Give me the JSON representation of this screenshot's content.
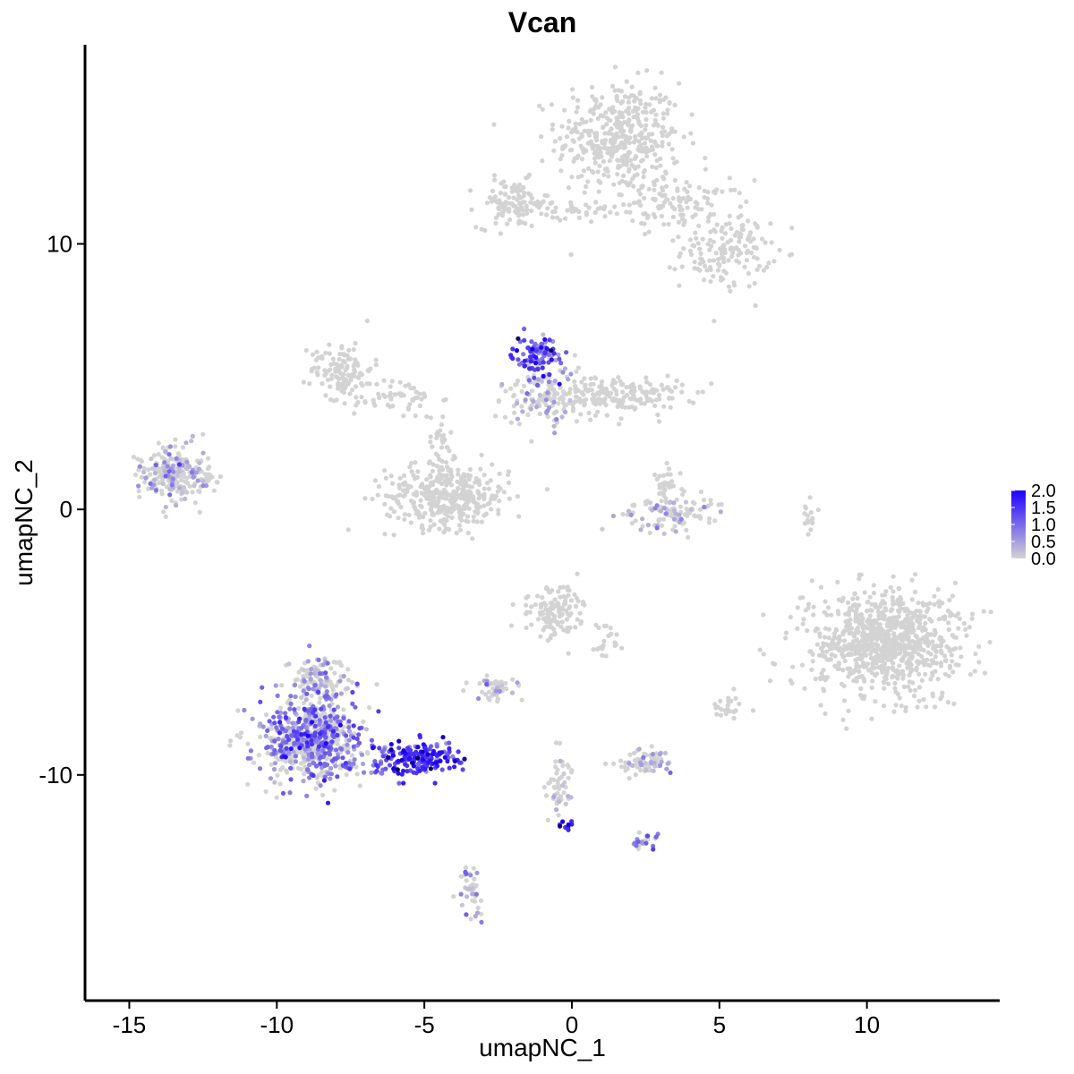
{
  "chart_data": {
    "type": "scatter",
    "title": "Vcan",
    "xlabel": "umapNC_1",
    "ylabel": "umapNC_2",
    "xlim": [
      -16.5,
      14.5
    ],
    "ylim": [
      -18.5,
      17.5
    ],
    "x_ticks": [
      -15,
      -10,
      -5,
      0,
      5,
      10
    ],
    "x_tick_labels": [
      "-15",
      "-10",
      "-5",
      "0",
      "5",
      "10"
    ],
    "y_ticks": [
      -10,
      0,
      10
    ],
    "y_tick_labels": [
      "-10",
      "0",
      "10"
    ],
    "grid": false,
    "legend_position": "right",
    "color_scale": {
      "low_color": "#d3d3d3",
      "high_color": "#1e00ff",
      "max_color": "#0a0060",
      "min": 0.0,
      "max": 2.0,
      "ticks": [
        2.0,
        1.5,
        1.0,
        0.5,
        0.0
      ],
      "tick_labels": [
        "2.0",
        "1.5",
        "1.0",
        "0.5",
        "0.0"
      ]
    },
    "clusters": [
      {
        "cx": 1.6,
        "cy": 14.0,
        "sx": 1.4,
        "sy": 1.4,
        "n": 420,
        "expr": 0.0
      },
      {
        "cx": 3.6,
        "cy": 11.5,
        "sx": 1.6,
        "sy": 0.6,
        "n": 120,
        "expr": 0.0
      },
      {
        "cx": 5.2,
        "cy": 9.7,
        "sx": 1.0,
        "sy": 0.9,
        "n": 150,
        "expr": 0.0
      },
      {
        "cx": -2.0,
        "cy": 11.5,
        "sx": 0.8,
        "sy": 0.6,
        "n": 110,
        "expr": 0.0
      },
      {
        "cx": -0.2,
        "cy": 11.2,
        "sx": 0.9,
        "sy": 0.3,
        "n": 30,
        "expr": 0.0
      },
      {
        "cx": -7.8,
        "cy": 5.3,
        "sx": 0.7,
        "sy": 0.7,
        "n": 120,
        "expr": 0.0
      },
      {
        "cx": -6.0,
        "cy": 4.2,
        "sx": 1.0,
        "sy": 0.5,
        "n": 60,
        "expr": 0.0
      },
      {
        "cx": -4.2,
        "cy": 0.5,
        "sx": 1.4,
        "sy": 0.8,
        "n": 380,
        "expr": 0.0
      },
      {
        "cx": -4.5,
        "cy": 2.5,
        "sx": 0.3,
        "sy": 0.8,
        "n": 30,
        "expr": 0.0
      },
      {
        "cx": -1.2,
        "cy": 5.8,
        "sx": 0.5,
        "sy": 0.5,
        "n": 90,
        "expr": 1.3
      },
      {
        "cx": -1.0,
        "cy": 4.3,
        "sx": 0.8,
        "sy": 0.8,
        "n": 130,
        "expr": 0.05
      },
      {
        "cx": 1.5,
        "cy": 4.3,
        "sx": 1.5,
        "sy": 0.5,
        "n": 200,
        "expr": 0.0
      },
      {
        "cx": -13.4,
        "cy": 1.3,
        "sx": 0.9,
        "sy": 0.7,
        "n": 250,
        "expr": 0.03
      },
      {
        "cx": 3.3,
        "cy": -0.1,
        "sx": 1.0,
        "sy": 0.5,
        "n": 120,
        "expr": 0.02
      },
      {
        "cx": 3.1,
        "cy": 0.9,
        "sx": 0.3,
        "sy": 0.5,
        "n": 30,
        "expr": 0.0
      },
      {
        "cx": 10.6,
        "cy": -5.0,
        "sx": 1.6,
        "sy": 1.3,
        "n": 900,
        "expr": 0.0
      },
      {
        "cx": -0.6,
        "cy": -3.8,
        "sx": 0.7,
        "sy": 0.6,
        "n": 130,
        "expr": 0.0
      },
      {
        "cx": 1.2,
        "cy": -5.0,
        "sx": 0.4,
        "sy": 0.4,
        "n": 20,
        "expr": 0.0
      },
      {
        "cx": -8.8,
        "cy": -8.7,
        "sx": 1.2,
        "sy": 1.1,
        "n": 650,
        "expr": 0.85
      },
      {
        "cx": -8.6,
        "cy": -6.4,
        "sx": 0.7,
        "sy": 0.6,
        "n": 110,
        "expr": 0.3
      },
      {
        "cx": -5.3,
        "cy": -9.4,
        "sx": 1.0,
        "sy": 0.4,
        "n": 200,
        "expr": 1.35
      },
      {
        "cx": -2.5,
        "cy": -6.8,
        "sx": 0.5,
        "sy": 0.3,
        "n": 50,
        "expr": 0.05
      },
      {
        "cx": 2.4,
        "cy": -9.5,
        "sx": 0.6,
        "sy": 0.3,
        "n": 80,
        "expr": 0.02
      },
      {
        "cx": -0.4,
        "cy": -10.5,
        "sx": 0.3,
        "sy": 0.9,
        "n": 50,
        "expr": 0.1
      },
      {
        "cx": -0.2,
        "cy": -11.9,
        "sx": 0.15,
        "sy": 0.15,
        "n": 10,
        "expr": 1.7
      },
      {
        "cx": 2.4,
        "cy": -12.5,
        "sx": 0.3,
        "sy": 0.2,
        "n": 25,
        "expr": 0.9
      },
      {
        "cx": -3.4,
        "cy": -14.5,
        "sx": 0.25,
        "sy": 0.7,
        "n": 40,
        "expr": 0.3
      },
      {
        "cx": 5.3,
        "cy": -7.4,
        "sx": 0.4,
        "sy": 0.3,
        "n": 25,
        "expr": 0.0
      },
      {
        "cx": 8.1,
        "cy": -0.2,
        "sx": 0.2,
        "sy": 0.5,
        "n": 15,
        "expr": 0.0
      }
    ]
  }
}
